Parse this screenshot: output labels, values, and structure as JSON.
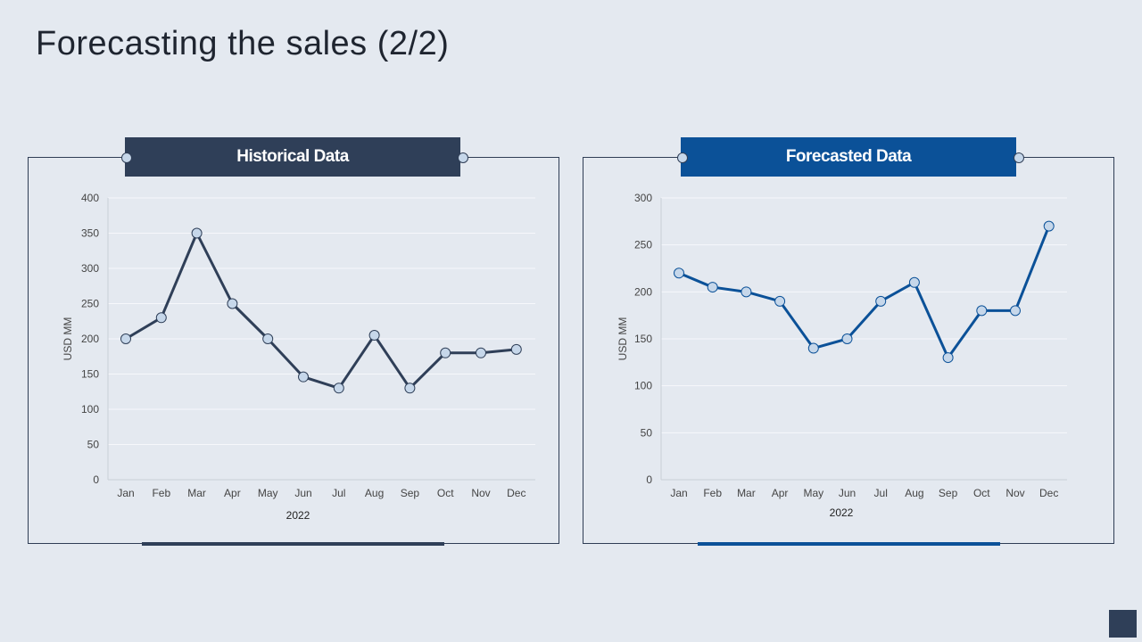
{
  "page": {
    "title": "Forecasting the sales (2/2)"
  },
  "colors": {
    "background": "#e4e9f0",
    "historical": "#2f3f58",
    "forecast": "#0b5198",
    "marker_fill": "#c6d7ea"
  },
  "chart_data": [
    {
      "type": "line",
      "title": "Historical Data",
      "xlabel": "2022",
      "ylabel": "USD MM",
      "categories": [
        "Jan",
        "Feb",
        "Mar",
        "Apr",
        "May",
        "Jun",
        "Jul",
        "Aug",
        "Sep",
        "Oct",
        "Nov",
        "Dec"
      ],
      "series": [
        {
          "name": "Historical Data",
          "values": [
            200,
            230,
            350,
            250,
            200,
            146,
            130,
            205,
            130,
            180,
            180,
            185
          ]
        }
      ],
      "ylim": [
        0,
        400
      ],
      "yticks": [
        0,
        50,
        100,
        150,
        200,
        250,
        300,
        350,
        400
      ],
      "grid": true
    },
    {
      "type": "line",
      "title": "Forecasted Data",
      "xlabel": "2022",
      "ylabel": "USD MM",
      "categories": [
        "Jan",
        "Feb",
        "Mar",
        "Apr",
        "May",
        "Jun",
        "Jul",
        "Aug",
        "Sep",
        "Oct",
        "Nov",
        "Dec"
      ],
      "series": [
        {
          "name": "Forecasted Data",
          "values": [
            220,
            205,
            200,
            190,
            140,
            150,
            190,
            210,
            130,
            180,
            180,
            270
          ]
        }
      ],
      "ylim": [
        0,
        300
      ],
      "yticks": [
        0,
        50,
        100,
        150,
        200,
        250,
        300
      ],
      "grid": true
    }
  ]
}
